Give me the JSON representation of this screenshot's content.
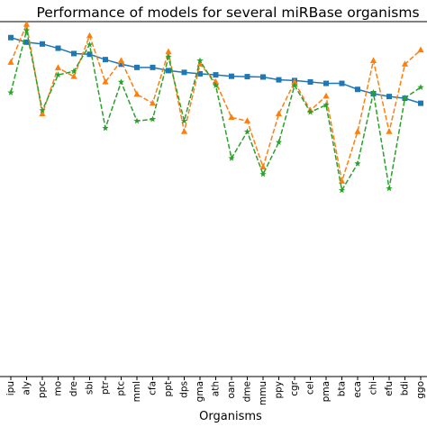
{
  "chart_data": {
    "type": "line",
    "title": "Performance of models for several miRBase organisms",
    "xlabel": "Organisms",
    "ylabel": "",
    "categories": [
      "ipu",
      "aly",
      "ppc",
      "mo",
      "dre",
      "sbi",
      "ptr",
      "ptc",
      "mml",
      "cfa",
      "ppt",
      "dps",
      "gma",
      "ath",
      "oan",
      "dme",
      "mmu",
      "ppy",
      "cgr",
      "cel",
      "pma",
      "bta",
      "eca",
      "chi",
      "efu",
      "bdi",
      "ggo"
    ],
    "ylim": [
      0,
      1
    ],
    "grid": false,
    "series": [
      {
        "color": "#1f77b4",
        "linestyle": "solid",
        "marker": "square",
        "values": [
          0.955,
          0.942,
          0.937,
          0.925,
          0.91,
          0.908,
          0.893,
          0.88,
          0.871,
          0.871,
          0.862,
          0.857,
          0.853,
          0.85,
          0.846,
          0.845,
          0.844,
          0.836,
          0.834,
          0.83,
          0.826,
          0.826,
          0.809,
          0.797,
          0.789,
          0.784,
          0.77
        ]
      },
      {
        "color": "#ff7f0e",
        "linestyle": "dashed",
        "marker": "triangle",
        "values": [
          0.885,
          0.992,
          0.74,
          0.87,
          0.845,
          0.96,
          0.83,
          0.89,
          0.795,
          0.77,
          0.915,
          0.69,
          0.88,
          0.83,
          0.73,
          0.72,
          0.59,
          0.74,
          0.83,
          0.75,
          0.79,
          0.55,
          0.69,
          0.89,
          0.69,
          0.88,
          0.92
        ]
      },
      {
        "color": "#2ca02c",
        "linestyle": "dashed",
        "marker": "star",
        "values": [
          0.8,
          0.975,
          0.75,
          0.85,
          0.86,
          0.935,
          0.7,
          0.83,
          0.72,
          0.725,
          0.9,
          0.72,
          0.89,
          0.82,
          0.615,
          0.69,
          0.57,
          0.66,
          0.82,
          0.745,
          0.765,
          0.525,
          0.6,
          0.8,
          0.53,
          0.785,
          0.815
        ]
      }
    ]
  }
}
